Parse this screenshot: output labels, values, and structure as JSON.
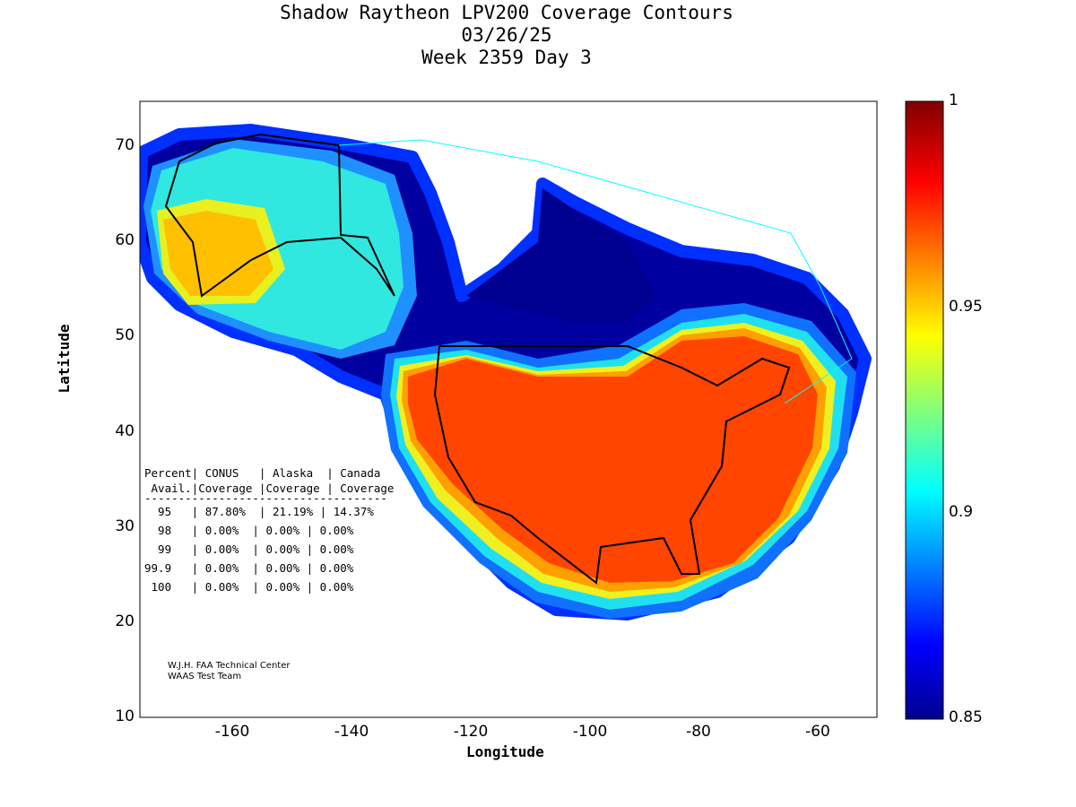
{
  "title": {
    "line1": "Shadow Raytheon LPV200 Coverage Contours",
    "line2": "03/26/25",
    "line3": "Week 2359 Day 3"
  },
  "axes": {
    "xlabel": "Longitude",
    "ylabel": "Latitude",
    "xlim": [
      -175.5,
      -50
    ],
    "ylim": [
      10,
      74.7
    ],
    "xticks": [
      "-160",
      "-140",
      "-120",
      "-100",
      "-80",
      "-60"
    ],
    "yticks": [
      "70",
      "60",
      "50",
      "40",
      "30",
      "20",
      "10"
    ]
  },
  "colorbar": {
    "range": [
      0.85,
      1
    ],
    "ticks": [
      "1",
      "0.95",
      "0.9",
      "0.85"
    ]
  },
  "table": {
    "header1": "Percent| CONUS   | Alaska  | Canada",
    "header2": " Avail.|Coverage |Coverage | Coverage",
    "separator": "------------------------------------",
    "rows": [
      "  95   | 87.80%  | 21.19% | 14.37%",
      "  98   | 0.00%  | 0.00% | 0.00%",
      "  99   | 0.00%  | 0.00% | 0.00%",
      "99.9   | 0.00%  | 0.00% | 0.00%",
      " 100   | 0.00%  | 0.00% | 0.00%"
    ]
  },
  "credits": {
    "line1": "W.J.H. FAA Technical Center",
    "line2": "WAAS Test Team"
  }
}
